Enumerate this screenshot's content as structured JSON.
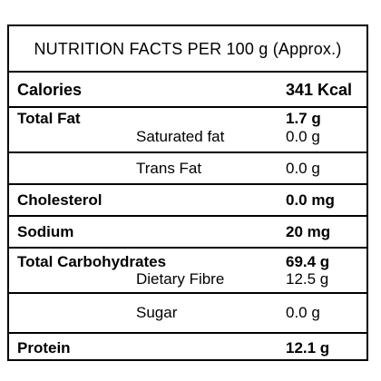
{
  "title": "NUTRITION FACTS PER 100 g (Approx.)",
  "rows": {
    "calories": {
      "label": "Calories",
      "value": "341 Kcal"
    },
    "total_fat": {
      "label": "Total Fat",
      "value": "1.7 g",
      "sub": [
        {
          "label": "Saturated fat",
          "value": "0.0 g"
        }
      ]
    },
    "trans_fat": {
      "label": "Trans Fat",
      "value": "0.0 g"
    },
    "cholesterol": {
      "label": "Cholesterol",
      "value": "0.0 mg"
    },
    "sodium": {
      "label": "Sodium",
      "value": "20 mg"
    },
    "total_carbohydrates": {
      "label": "Total Carbohydrates",
      "value": "69.4 g",
      "sub": [
        {
          "label": "Dietary Fibre",
          "value": "12.5 g"
        }
      ]
    },
    "sugar": {
      "label": "Sugar",
      "value": "0.0 g"
    },
    "protein": {
      "label": "Protein",
      "value": "12.1 g"
    }
  }
}
